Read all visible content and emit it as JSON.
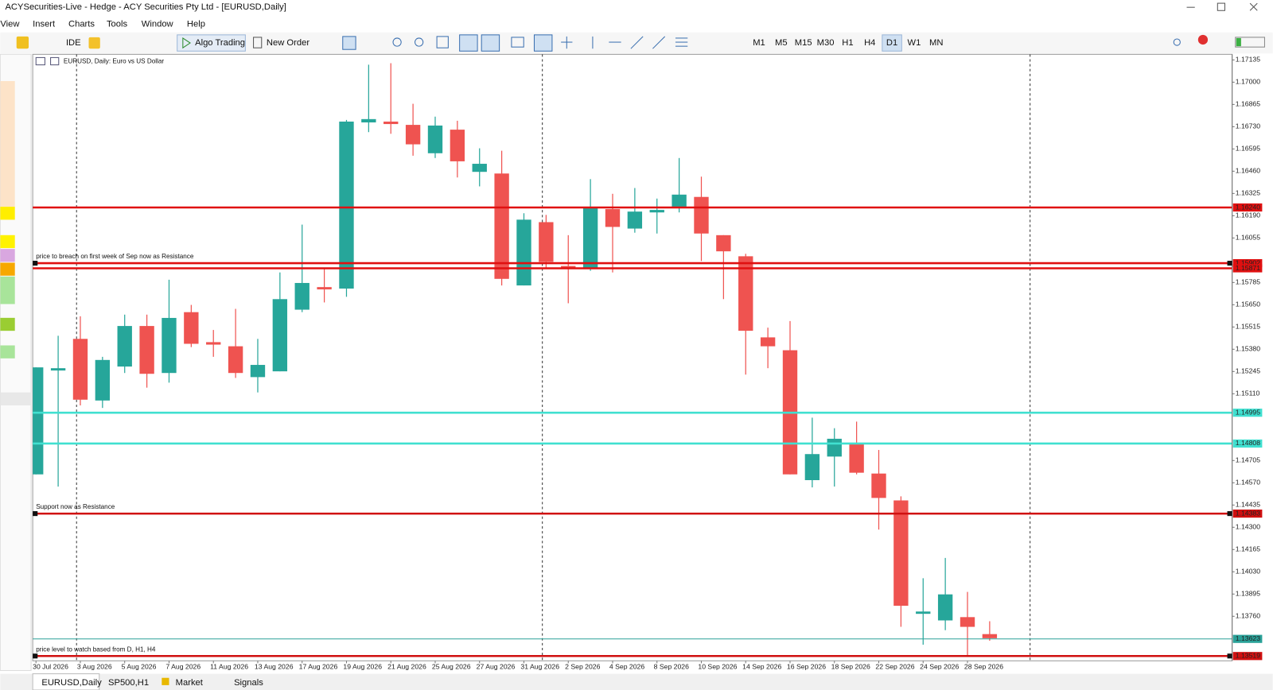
{
  "window": {
    "title": "ACYSecurities-Live - Hedge - ACY Securities Pty Ltd - [EURUSD,Daily]"
  },
  "menu": [
    "View",
    "Insert",
    "Charts",
    "Tools",
    "Window",
    "Help"
  ],
  "toolbar": {
    "buttons": [
      "IDE",
      "Algo Trading",
      "New Order"
    ],
    "timeframes": [
      "M1",
      "M5",
      "M15",
      "M30",
      "H1",
      "H4",
      "D1",
      "W1",
      "MN"
    ],
    "active_timeframe": "D1"
  },
  "chart_data": {
    "type": "candlestick",
    "title": "EURUSD, Daily:  Euro vs US Dollar",
    "categories": [
      "30 Jul 2026",
      null,
      "3 Aug 2026",
      null,
      "5 Aug 2026",
      null,
      "7 Aug 2026",
      null,
      "11 Aug 2026",
      null,
      "13 Aug 2026",
      null,
      "17 Aug 2026",
      null,
      "19 Aug 2026",
      null,
      "21 Aug 2026",
      null,
      "25 Aug 2026",
      null,
      "27 Aug 2026",
      null,
      "31 Aug 2026",
      null,
      "2 Sep 2026",
      null,
      "4 Sep 2026",
      null,
      "8 Sep 2026",
      null,
      "10 Sep 2026",
      null,
      "14 Sep 2026",
      null,
      "16 Sep 2026",
      null,
      "18 Sep 2026",
      null,
      "22 Sep 2026",
      null,
      "24 Sep 2026",
      null,
      "28 Sep 2026",
      null
    ],
    "open": [
      1.14621,
      1.15251,
      1.15443,
      1.15069,
      1.15275,
      1.15521,
      1.15236,
      1.15605,
      1.15423,
      1.15398,
      1.15211,
      1.15246,
      1.1562,
      1.15757,
      1.15748,
      1.16756,
      1.16761,
      1.16741,
      1.16569,
      1.16712,
      1.16456,
      1.16446,
      1.15767,
      1.16151,
      1.15885,
      1.15866,
      1.1623,
      1.16112,
      1.1621,
      1.16245,
      1.16304,
      1.16072,
      1.15944,
      1.15452,
      1.15374,
      1.14586,
      1.14729,
      1.14803,
      1.14626,
      1.14463,
      1.13775,
      1.13735,
      1.13755,
      1.13652
    ],
    "high": [
      1.1527,
      1.15462,
      1.1558,
      1.15334,
      1.1559,
      1.1559,
      1.15802,
      1.15649,
      1.15497,
      1.15625,
      1.15443,
      1.15846,
      1.16136,
      1.15871,
      1.16771,
      1.17106,
      1.17115,
      1.16869,
      1.16791,
      1.16766,
      1.16599,
      1.16584,
      1.16205,
      1.16195,
      1.16072,
      1.16412,
      1.16323,
      1.16358,
      1.16294,
      1.1654,
      1.16427,
      1.16072,
      1.15959,
      1.15511,
      1.15551,
      1.14965,
      1.14901,
      1.14941,
      1.14769,
      1.14488,
      1.13991,
      1.14114,
      1.13908,
      1.1373
    ],
    "low": [
      1.14621,
      1.14547,
      1.15039,
      1.15024,
      1.15236,
      1.15147,
      1.15177,
      1.15393,
      1.15334,
      1.15206,
      1.15118,
      1.15246,
      1.15605,
      1.15664,
      1.15698,
      1.16697,
      1.16687,
      1.16554,
      1.1654,
      1.16422,
      1.16368,
      1.15767,
      1.15767,
      1.15876,
      1.15659,
      1.15856,
      1.15846,
      1.16087,
      1.16082,
      1.1621,
      1.15915,
      1.15684,
      1.15226,
      1.15265,
      1.14621,
      1.14542,
      1.14547,
      1.14621,
      1.14286,
      1.13696,
      1.13588,
      1.13676,
      1.13524,
      1.13612
    ],
    "close": [
      1.1527,
      1.15265,
      1.15074,
      1.15315,
      1.15521,
      1.15231,
      1.1557,
      1.15413,
      1.15408,
      1.15236,
      1.15285,
      1.15684,
      1.15782,
      1.15743,
      1.16761,
      1.16776,
      1.16746,
      1.16623,
      1.16737,
      1.1652,
      1.16505,
      1.15807,
      1.16166,
      1.1591,
      1.15876,
      1.16235,
      1.16122,
      1.16215,
      1.16225,
      1.16318,
      1.16082,
      1.15974,
      1.15492,
      1.15398,
      1.14621,
      1.14744,
      1.14837,
      1.14631,
      1.14478,
      1.13824,
      1.13789,
      1.13893,
      1.13696,
      1.13627
    ],
    "up_color": "#26a69a",
    "down_color": "#ef5350",
    "ylim": [
      1.1349,
      1.17169
    ],
    "yticks": [
      1.17135,
      {
        "value": 1.17,
        "label": "1.17000"
      },
      1.16865,
      {
        "value": 1.1673,
        "label": "1.16730"
      },
      1.16595,
      {
        "value": 1.1646,
        "label": "1.16460"
      },
      1.16325,
      {
        "value": 1.1619,
        "label": "1.16190"
      },
      1.16055,
      1.15785,
      {
        "value": 1.1565,
        "label": "1.15650"
      },
      1.15515,
      {
        "value": 1.1538,
        "label": "1.15380"
      },
      1.15245,
      {
        "value": 1.1511,
        "label": "1.15110"
      },
      1.14705,
      {
        "value": 1.1457,
        "label": "1.14570"
      },
      1.14435,
      {
        "value": 1.143,
        "label": "1.14300"
      },
      1.14165,
      {
        "value": 1.1403,
        "label": "1.14030"
      },
      1.13895,
      {
        "value": 1.1376,
        "label": "1.13760"
      }
    ],
    "levels": [
      {
        "value": 1.1624,
        "label": "1.16240",
        "color": "#e01010"
      },
      {
        "value": 1.15902,
        "label": "1.15902",
        "color": "#e01010",
        "text": "price to breach on first week of Sep now as Resistance"
      },
      {
        "value": 1.15871,
        "label": "1.15871",
        "color": "#e01010"
      },
      {
        "value": 1.14995,
        "label": "1.14995",
        "color": "#40e0d0"
      },
      {
        "value": 1.14808,
        "label": "1.14808",
        "color": "#40e0d0"
      },
      {
        "value": 1.14383,
        "label": "1.14383",
        "color": "#d01010",
        "text": "Support now as Resistance"
      },
      {
        "value": 1.13623,
        "label": "1.13623",
        "color": "#2aa198"
      },
      {
        "value": 1.13519,
        "label": "1.13519",
        "color": "#d01010",
        "text": "price level to watch based from D, H1, H4"
      }
    ]
  },
  "tabs": [
    "EURUSD,Daily",
    "SP500,H1",
    "Market",
    "Signals"
  ]
}
